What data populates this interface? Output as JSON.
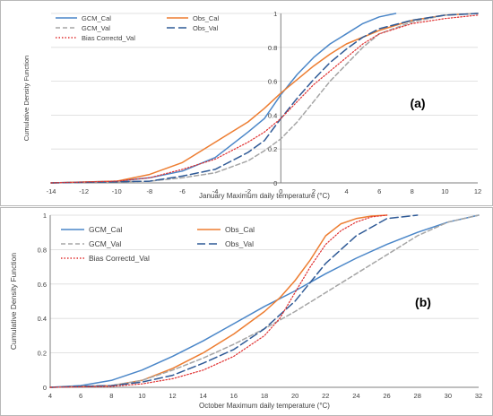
{
  "chart_data": [
    {
      "type": "line",
      "panel_tag": "(a)",
      "title": "",
      "xlabel": "January Maximum daily temperature (°C)",
      "ylabel": "Cumulative Density Function",
      "xlim": [
        -14,
        12
      ],
      "ylim": [
        0,
        1
      ],
      "xticks": [
        "-14",
        "-12",
        "-10",
        "-8",
        "-6",
        "-4",
        "-2",
        "0",
        "2",
        "4",
        "6",
        "8",
        "10",
        "12"
      ],
      "yticks": [
        "0",
        "0.2",
        "0.4",
        "0.6",
        "0.8",
        "1"
      ],
      "grid": "horizontal",
      "legend_position": "top-left",
      "series": [
        {
          "name": "GCM_Cal",
          "color": "#4a86c8",
          "style": "solid",
          "x": [
            -14,
            -10,
            -8,
            -6,
            -4,
            -2,
            -1,
            0,
            1,
            2,
            3,
            4,
            5,
            6,
            7
          ],
          "y": [
            0,
            0.01,
            0.03,
            0.07,
            0.15,
            0.3,
            0.38,
            0.52,
            0.64,
            0.74,
            0.82,
            0.88,
            0.94,
            0.98,
            1.0
          ]
        },
        {
          "name": "Obs_Cal",
          "color": "#ed7d31",
          "style": "solid",
          "x": [
            -14,
            -10,
            -8,
            -6,
            -4,
            -2,
            -1,
            0,
            1,
            2,
            3,
            4,
            5,
            6,
            8,
            10,
            12
          ],
          "y": [
            0,
            0.01,
            0.05,
            0.12,
            0.24,
            0.36,
            0.44,
            0.53,
            0.61,
            0.69,
            0.76,
            0.82,
            0.86,
            0.9,
            0.96,
            0.99,
            1.0
          ]
        },
        {
          "name": "GCM_Val",
          "color": "#a5a5a5",
          "style": "dash",
          "x": [
            -14,
            -8,
            -6,
            -4,
            -2,
            -1,
            0,
            1,
            2,
            3,
            4,
            5,
            6,
            8,
            10,
            12
          ],
          "y": [
            0,
            0.01,
            0.03,
            0.06,
            0.13,
            0.19,
            0.26,
            0.36,
            0.48,
            0.6,
            0.7,
            0.8,
            0.88,
            0.95,
            0.99,
            1.0
          ]
        },
        {
          "name": "Obs_Val",
          "color": "#2f5a96",
          "style": "longdash",
          "x": [
            -14,
            -8,
            -6,
            -4,
            -2,
            -1,
            0,
            1,
            2,
            3,
            4,
            5,
            6,
            8,
            10,
            12
          ],
          "y": [
            0,
            0.01,
            0.04,
            0.08,
            0.18,
            0.25,
            0.38,
            0.5,
            0.61,
            0.71,
            0.79,
            0.86,
            0.91,
            0.96,
            0.99,
            1.0
          ]
        },
        {
          "name": "Bias Correctd_Val",
          "color": "#e03030",
          "style": "dot",
          "x": [
            -14,
            -10,
            -8,
            -6,
            -4,
            -2,
            -1,
            0,
            1,
            2,
            3,
            4,
            5,
            6,
            8,
            10,
            12
          ],
          "y": [
            0,
            0.01,
            0.03,
            0.08,
            0.14,
            0.24,
            0.3,
            0.38,
            0.48,
            0.58,
            0.66,
            0.74,
            0.82,
            0.88,
            0.94,
            0.97,
            0.99
          ]
        }
      ]
    },
    {
      "type": "line",
      "panel_tag": "(b)",
      "title": "",
      "xlabel": "October Maximum daily temperature (°C)",
      "ylabel": "Cumulative Density Function",
      "xlim": [
        4,
        32
      ],
      "ylim": [
        0,
        1
      ],
      "xticks": [
        "4",
        "6",
        "8",
        "10",
        "12",
        "14",
        "16",
        "18",
        "20",
        "22",
        "24",
        "26",
        "28",
        "30",
        "32"
      ],
      "yticks": [
        "0",
        "0.2",
        "0.4",
        "0.6",
        "0.8",
        "1"
      ],
      "grid": "horizontal",
      "legend_position": "top-left",
      "series": [
        {
          "name": "GCM_Cal",
          "color": "#4a86c8",
          "style": "solid",
          "x": [
            4,
            6,
            8,
            10,
            12,
            14,
            16,
            18,
            20,
            22,
            24,
            26,
            28,
            30,
            32
          ],
          "y": [
            0,
            0.01,
            0.04,
            0.1,
            0.18,
            0.27,
            0.37,
            0.47,
            0.56,
            0.66,
            0.75,
            0.83,
            0.9,
            0.96,
            1.0
          ]
        },
        {
          "name": "Obs_Cal",
          "color": "#ed7d31",
          "style": "solid",
          "x": [
            4,
            8,
            10,
            12,
            14,
            16,
            18,
            19,
            20,
            21,
            22,
            23,
            24,
            25,
            26
          ],
          "y": [
            0,
            0.01,
            0.04,
            0.11,
            0.2,
            0.31,
            0.44,
            0.52,
            0.62,
            0.74,
            0.88,
            0.95,
            0.98,
            0.995,
            1.0
          ]
        },
        {
          "name": "GCM_Val",
          "color": "#a5a5a5",
          "style": "dash",
          "x": [
            4,
            8,
            10,
            12,
            14,
            16,
            18,
            20,
            22,
            24,
            26,
            28,
            30,
            32
          ],
          "y": [
            0,
            0.01,
            0.04,
            0.1,
            0.17,
            0.25,
            0.34,
            0.44,
            0.55,
            0.66,
            0.77,
            0.88,
            0.96,
            1.0
          ]
        },
        {
          "name": "Obs_Val",
          "color": "#2f5a96",
          "style": "longdash",
          "x": [
            4,
            8,
            10,
            12,
            14,
            16,
            18,
            20,
            22,
            24,
            26,
            28
          ],
          "y": [
            0,
            0.01,
            0.03,
            0.07,
            0.14,
            0.22,
            0.34,
            0.5,
            0.72,
            0.88,
            0.98,
            1.0
          ]
        },
        {
          "name": "Bias Correctd_Val",
          "color": "#e03030",
          "style": "dot",
          "x": [
            4,
            8,
            10,
            12,
            14,
            16,
            18,
            19,
            20,
            21,
            22,
            23,
            24,
            25,
            26
          ],
          "y": [
            0,
            0.005,
            0.02,
            0.05,
            0.1,
            0.18,
            0.3,
            0.4,
            0.55,
            0.7,
            0.83,
            0.91,
            0.96,
            0.99,
            1.0
          ]
        }
      ]
    }
  ]
}
